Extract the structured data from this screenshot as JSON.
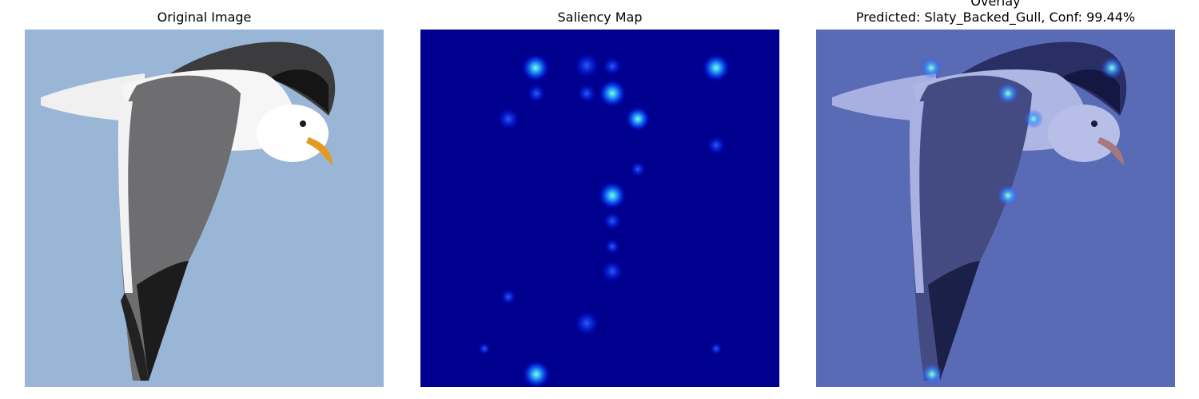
{
  "panels": {
    "original": {
      "title": "Original Image"
    },
    "saliency": {
      "title": "Saliency Map"
    },
    "overlay": {
      "title_line1": "Overlay",
      "title_line2": "Predicted: Slaty_Backed_Gull, Conf: 99.44%"
    }
  },
  "colors": {
    "sky": "#9ab6d6",
    "saliency_bg": "#00008f",
    "overlay_tint": "#5a6bb5"
  }
}
